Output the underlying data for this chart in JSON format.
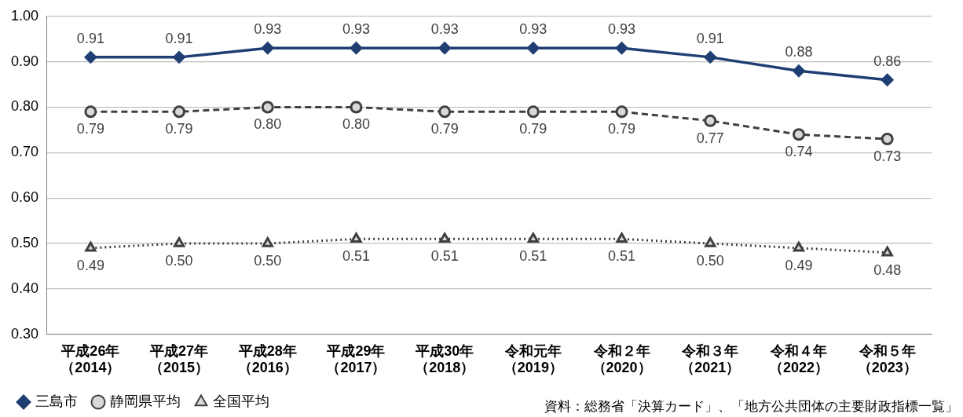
{
  "chart_data": {
    "type": "line",
    "categories": [
      "平成26年（2014）",
      "平成27年（2015）",
      "平成28年（2016）",
      "平成29年（2017）",
      "平成30年（2018）",
      "令和元年（2019）",
      "令和２年（2020）",
      "令和３年（2021）",
      "令和４年（2022）",
      "令和５年（2023）"
    ],
    "series": [
      {
        "name": "三島市",
        "color": "#1f3f73",
        "marker": "diamond",
        "line_style": "solid",
        "values": [
          0.91,
          0.91,
          0.93,
          0.93,
          0.93,
          0.93,
          0.93,
          0.91,
          0.88,
          0.86
        ],
        "value_labels": [
          "0.91",
          "0.91",
          "0.93",
          "0.93",
          "0.93",
          "0.93",
          "0.93",
          "0.91",
          "0.88",
          "0.86"
        ]
      },
      {
        "name": "静岡県平均",
        "color": "#404040",
        "marker": "circle",
        "line_style": "dashed",
        "values": [
          0.79,
          0.79,
          0.8,
          0.8,
          0.79,
          0.79,
          0.79,
          0.77,
          0.74,
          0.73
        ],
        "value_labels": [
          "0.79",
          "0.79",
          "0.80",
          "0.80",
          "0.79",
          "0.79",
          "0.79",
          "0.77",
          "0.74",
          "0.73"
        ]
      },
      {
        "name": "全国平均",
        "color": "#404040",
        "marker": "triangle",
        "line_style": "dotted",
        "values": [
          0.49,
          0.5,
          0.5,
          0.51,
          0.51,
          0.51,
          0.51,
          0.5,
          0.49,
          0.48
        ],
        "value_labels": [
          "0.49",
          "0.50",
          "0.50",
          "0.51",
          "0.51",
          "0.51",
          "0.51",
          "0.50",
          "0.49",
          "0.48"
        ]
      }
    ],
    "ylim": [
      0.3,
      1.0
    ],
    "yticks": [
      {
        "value": 0.3,
        "label": "0.30"
      },
      {
        "value": 0.4,
        "label": "0.40"
      },
      {
        "value": 0.5,
        "label": "0.50"
      },
      {
        "value": 0.6,
        "label": "0.60"
      },
      {
        "value": 0.7,
        "label": "0.70"
      },
      {
        "value": 0.8,
        "label": "0.80"
      },
      {
        "value": 0.9,
        "label": "0.90"
      },
      {
        "value": 1.0,
        "label": "1.00"
      }
    ],
    "grid": "y",
    "legend": "bottom left",
    "annotations": [
      "資料：総務省「決算カード」、「地方公共団体の主要財政指標一覧」"
    ]
  }
}
